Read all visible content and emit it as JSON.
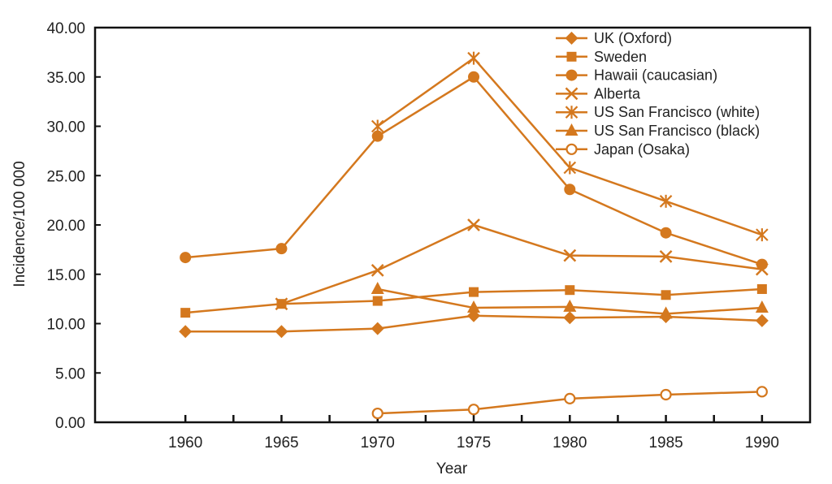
{
  "chart_data": {
    "type": "line",
    "xlabel": "Year",
    "ylabel": "Incidence/100 000",
    "x": [
      1960,
      1965,
      1970,
      1975,
      1980,
      1985,
      1990
    ],
    "x_ticks": [
      "1960",
      "1965",
      "1970",
      "1975",
      "1980",
      "1985",
      "1990"
    ],
    "ylim": [
      0,
      40
    ],
    "y_ticks": [
      "0.00",
      "5.00",
      "10.00",
      "15.00",
      "20.00",
      "25.00",
      "30.00",
      "35.00",
      "40.00"
    ],
    "grid": false,
    "legend_position": "top-right",
    "color": "#D4781E",
    "series": [
      {
        "name": "UK (Oxford)",
        "marker": "diamond",
        "values": [
          9.2,
          9.2,
          9.5,
          10.8,
          10.6,
          10.7,
          10.3
        ]
      },
      {
        "name": "Sweden",
        "marker": "square",
        "values": [
          11.1,
          12.0,
          12.3,
          13.2,
          13.4,
          12.9,
          13.5
        ]
      },
      {
        "name": "Hawaii (caucasian)",
        "marker": "circle",
        "values": [
          16.7,
          17.6,
          29.0,
          35.0,
          23.6,
          19.2,
          16.0
        ]
      },
      {
        "name": "Alberta",
        "marker": "x",
        "values": [
          null,
          12.0,
          15.4,
          20.0,
          16.9,
          16.8,
          15.5
        ]
      },
      {
        "name": "US San Francisco (white)",
        "marker": "asterisk",
        "values": [
          null,
          null,
          30.0,
          36.9,
          25.8,
          22.4,
          19.0
        ]
      },
      {
        "name": "US San Francisco (black)",
        "marker": "triangle",
        "values": [
          null,
          null,
          13.5,
          11.6,
          11.7,
          11.0,
          11.6
        ]
      },
      {
        "name": "Japan (Osaka)",
        "marker": "open-circle",
        "values": [
          null,
          null,
          0.9,
          1.3,
          2.4,
          2.8,
          3.1
        ]
      }
    ]
  }
}
